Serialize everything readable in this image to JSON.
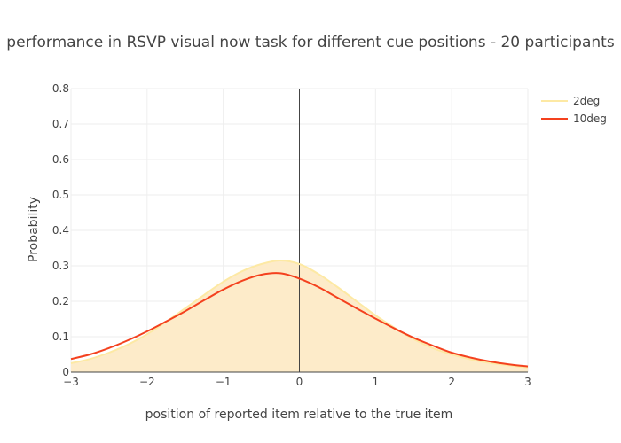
{
  "chart_data": {
    "type": "area",
    "title": "performance in RSVP visual now task for different cue positions - 20 participants",
    "xlabel": "position of reported item relative to the true item",
    "ylabel": "Probability",
    "xlim": [
      -3,
      3
    ],
    "ylim": [
      0,
      0.8
    ],
    "x_ticks": [
      -3,
      -2,
      -1,
      0,
      1,
      2,
      3
    ],
    "x_tick_labels": [
      "−3",
      "−2",
      "−1",
      "0",
      "1",
      "2",
      "3"
    ],
    "y_ticks": [
      0,
      0.1,
      0.2,
      0.3,
      0.4,
      0.5,
      0.6,
      0.7,
      0.8
    ],
    "y_tick_labels": [
      "0",
      "0.1",
      "0.2",
      "0.3",
      "0.4",
      "0.5",
      "0.6",
      "0.7",
      "0.8"
    ],
    "grid": true,
    "legend_position": "top-right",
    "vertical_line_x": 0,
    "series": [
      {
        "name": "2deg",
        "color": "#fde9a4",
        "fill": "#fdebc9",
        "filled": true,
        "x": [
          -3,
          -2.75,
          -2.5,
          -2.25,
          -2,
          -1.75,
          -1.5,
          -1.25,
          -1,
          -0.75,
          -0.5,
          -0.25,
          0,
          0.25,
          0.5,
          0.75,
          1,
          1.25,
          1.5,
          1.75,
          2,
          2.25,
          2.5,
          2.75,
          3
        ],
        "values": [
          0.025,
          0.037,
          0.055,
          0.078,
          0.107,
          0.142,
          0.18,
          0.218,
          0.255,
          0.285,
          0.305,
          0.315,
          0.305,
          0.277,
          0.24,
          0.2,
          0.16,
          0.125,
          0.093,
          0.068,
          0.05,
          0.036,
          0.026,
          0.019,
          0.013
        ]
      },
      {
        "name": "10deg",
        "color": "#f4411e",
        "filled": false,
        "x": [
          -3,
          -2.75,
          -2.5,
          -2.25,
          -2,
          -1.75,
          -1.5,
          -1.25,
          -1,
          -0.75,
          -0.5,
          -0.25,
          0,
          0.25,
          0.5,
          0.75,
          1,
          1.25,
          1.5,
          1.75,
          2,
          2.25,
          2.5,
          2.75,
          3
        ],
        "values": [
          0.037,
          0.05,
          0.068,
          0.09,
          0.115,
          0.143,
          0.172,
          0.203,
          0.233,
          0.258,
          0.275,
          0.279,
          0.264,
          0.24,
          0.21,
          0.18,
          0.151,
          0.123,
          0.097,
          0.075,
          0.055,
          0.041,
          0.03,
          0.022,
          0.016
        ]
      }
    ]
  }
}
